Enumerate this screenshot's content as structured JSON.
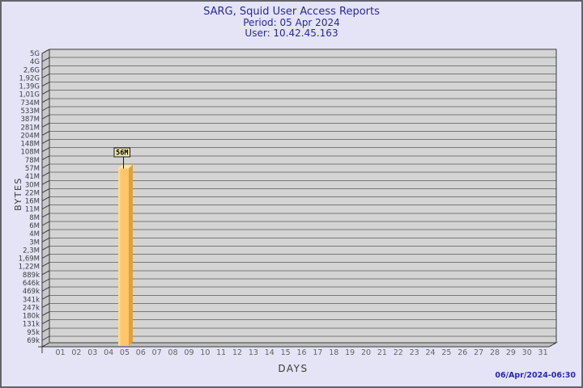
{
  "header": {
    "title": "SARG, Squid User Access Reports",
    "period": "Period: 05 Apr 2024",
    "user": "User: 10.42.45.163"
  },
  "footer": {
    "generated": "06/Apr/2024-06:30"
  },
  "chart_data": {
    "type": "bar",
    "title": "SARG, Squid User Access Reports",
    "subtitle_lines": [
      "Period: 05 Apr 2024",
      "User: 10.42.45.163"
    ],
    "xlabel": "DAYS",
    "ylabel": "BYTES",
    "y_scale": "log",
    "grid": true,
    "legend": "none",
    "x_categories": [
      "01",
      "02",
      "03",
      "04",
      "05",
      "06",
      "07",
      "08",
      "09",
      "10",
      "11",
      "12",
      "13",
      "14",
      "15",
      "16",
      "17",
      "18",
      "19",
      "20",
      "21",
      "22",
      "23",
      "24",
      "25",
      "26",
      "27",
      "28",
      "29",
      "30",
      "31"
    ],
    "y_tick_labels": [
      "5G",
      "4G",
      "2,6G",
      "1,92G",
      "1,39G",
      "1,01G",
      "734M",
      "533M",
      "387M",
      "281M",
      "204M",
      "148M",
      "108M",
      "78M",
      "57M",
      "41M",
      "30M",
      "22M",
      "16M",
      "11M",
      "8M",
      "6M",
      "4M",
      "3M",
      "2,3M",
      "1,69M",
      "1,22M",
      "889k",
      "646k",
      "469k",
      "341k",
      "247k",
      "180k",
      "131k",
      "95k",
      "69k"
    ],
    "bars": [
      {
        "x": "05",
        "value": 56000000,
        "value_label": "56M"
      }
    ],
    "colors": {
      "page_bg": "#e4e4f6",
      "page_border": "#63636b",
      "header_text": "#28289e",
      "timestamp_text": "#2828b4",
      "plot_bg": "#d4d4d4",
      "left_wall": "#c8c8c8",
      "floor": "#bfbfbf",
      "gridline": "#787878",
      "outline": "#3c3c3c",
      "y_label_text": "#3d3d3d",
      "x_label_text": "#636363",
      "axis_title_text": "#3a3a3a",
      "bar_front": "#ffc669",
      "bar_front_highlight": "#ffd98f",
      "bar_side": "#dda13f",
      "bar_top": "#ffe3a6",
      "value_box_bg": "#efebb0",
      "value_box_border": "#1a1a1a",
      "value_text": "#000000"
    }
  }
}
